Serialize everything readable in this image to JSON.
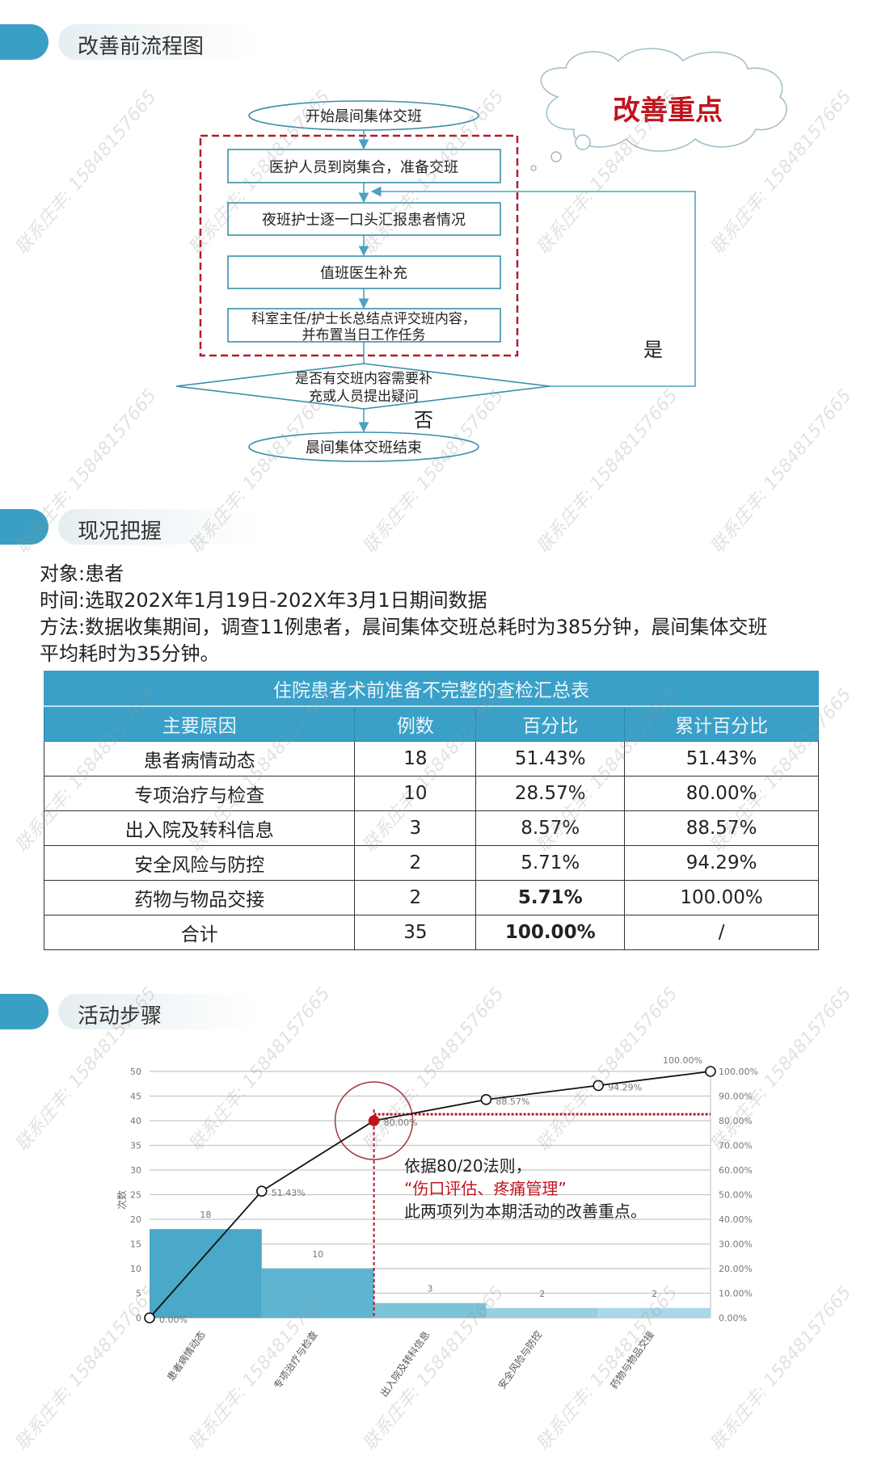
{
  "sections": {
    "flowchart_title": "改善前流程图",
    "status_title": "现况把握",
    "steps_title": "活动步骤"
  },
  "flowchart": {
    "start": "开始晨间集体交班",
    "step1": "医护人员到岗集合，准备交班",
    "step2": "夜班护士逐一口头汇报患者情况",
    "step3": "值班医生补充",
    "step4_line1": "科室主任/护士长总结点评交班内容，",
    "step4_line2": "并布置当日工作任务",
    "decision_line1": "是否有交班内容需要补",
    "decision_line2": "充或人员提出疑问",
    "yes_label": "是",
    "no_label": "否",
    "end": "晨间集体交班结束",
    "callout": "改善重点",
    "callout_color": "#c0141c",
    "line_color": "#4aa3c0",
    "dash_color": "#b01e2a"
  },
  "intro": {
    "subject": "对象:患者",
    "time": "时间:选取202X年1月19日-202X年3月1日期间数据",
    "method_line1": "方法:数据收集期间，调查11例患者，晨间集体交班总耗时为385分钟，晨间集体交班",
    "method_line2": "平均耗时为35分钟。"
  },
  "table": {
    "caption": "住院患者术前准备不完整的查检汇总表",
    "headers": [
      "主要原因",
      "例数",
      "百分比",
      "累计百分比"
    ],
    "rows": [
      [
        "患者病情动态",
        "18",
        "51.43%",
        "51.43%"
      ],
      [
        "专项治疗与检查",
        "10",
        "28.57%",
        "80.00%"
      ],
      [
        "出入院及转科信息",
        "3",
        "8.57%",
        "88.57%"
      ],
      [
        "安全风险与防控",
        "2",
        "5.71%",
        "94.29%"
      ],
      [
        "药物与物品交接",
        "2",
        "5.71%",
        "100.00%"
      ],
      [
        "合计",
        "35",
        "100.00%",
        "/"
      ]
    ],
    "header_color": "#3aa0c8"
  },
  "chart_data": {
    "type": "bar",
    "title": "",
    "xlabel": "",
    "ylabel": "次数",
    "categories": [
      "患者病情动态",
      "专项治疗与检查",
      "出入院及转科信息",
      "安全风险与防控",
      "药物与物品交接"
    ],
    "values": [
      18,
      10,
      3,
      2,
      2
    ],
    "value_labels": [
      "18",
      "10",
      "3",
      "2",
      "2"
    ],
    "cumulative_percent": [
      0,
      51.43,
      80.0,
      88.57,
      94.29,
      100.0
    ],
    "cumulative_labels": [
      "0.00%",
      "51.43%",
      "80.00%",
      "88.57%",
      "94.29%",
      "100.00%"
    ],
    "ylim": [
      0,
      50
    ],
    "y_ticks": [
      "0",
      "5",
      "10",
      "15",
      "20",
      "25",
      "30",
      "35",
      "40",
      "45",
      "50"
    ],
    "y2lim": [
      0,
      100
    ],
    "y2_ticks": [
      "0.00%",
      "10.00%",
      "20.00%",
      "30.00%",
      "40.00%",
      "50.00%",
      "60.00%",
      "70.00%",
      "80.00%",
      "90.00%",
      "100.00%"
    ],
    "grid": true,
    "bar_colors": [
      "#4aa8c8",
      "#5fb4d2",
      "#7cc3d8",
      "#98cfe1",
      "#a9d8e8"
    ],
    "highlight_point_color": "#c0141c",
    "annotation_prefix": "依据80/20法则，",
    "annotation_highlight": "“伤口评估、疼痛管理”",
    "annotation_suffix": "此两项列为本期活动的改善重点。"
  },
  "watermark": "联系庄丰: 15848157665"
}
